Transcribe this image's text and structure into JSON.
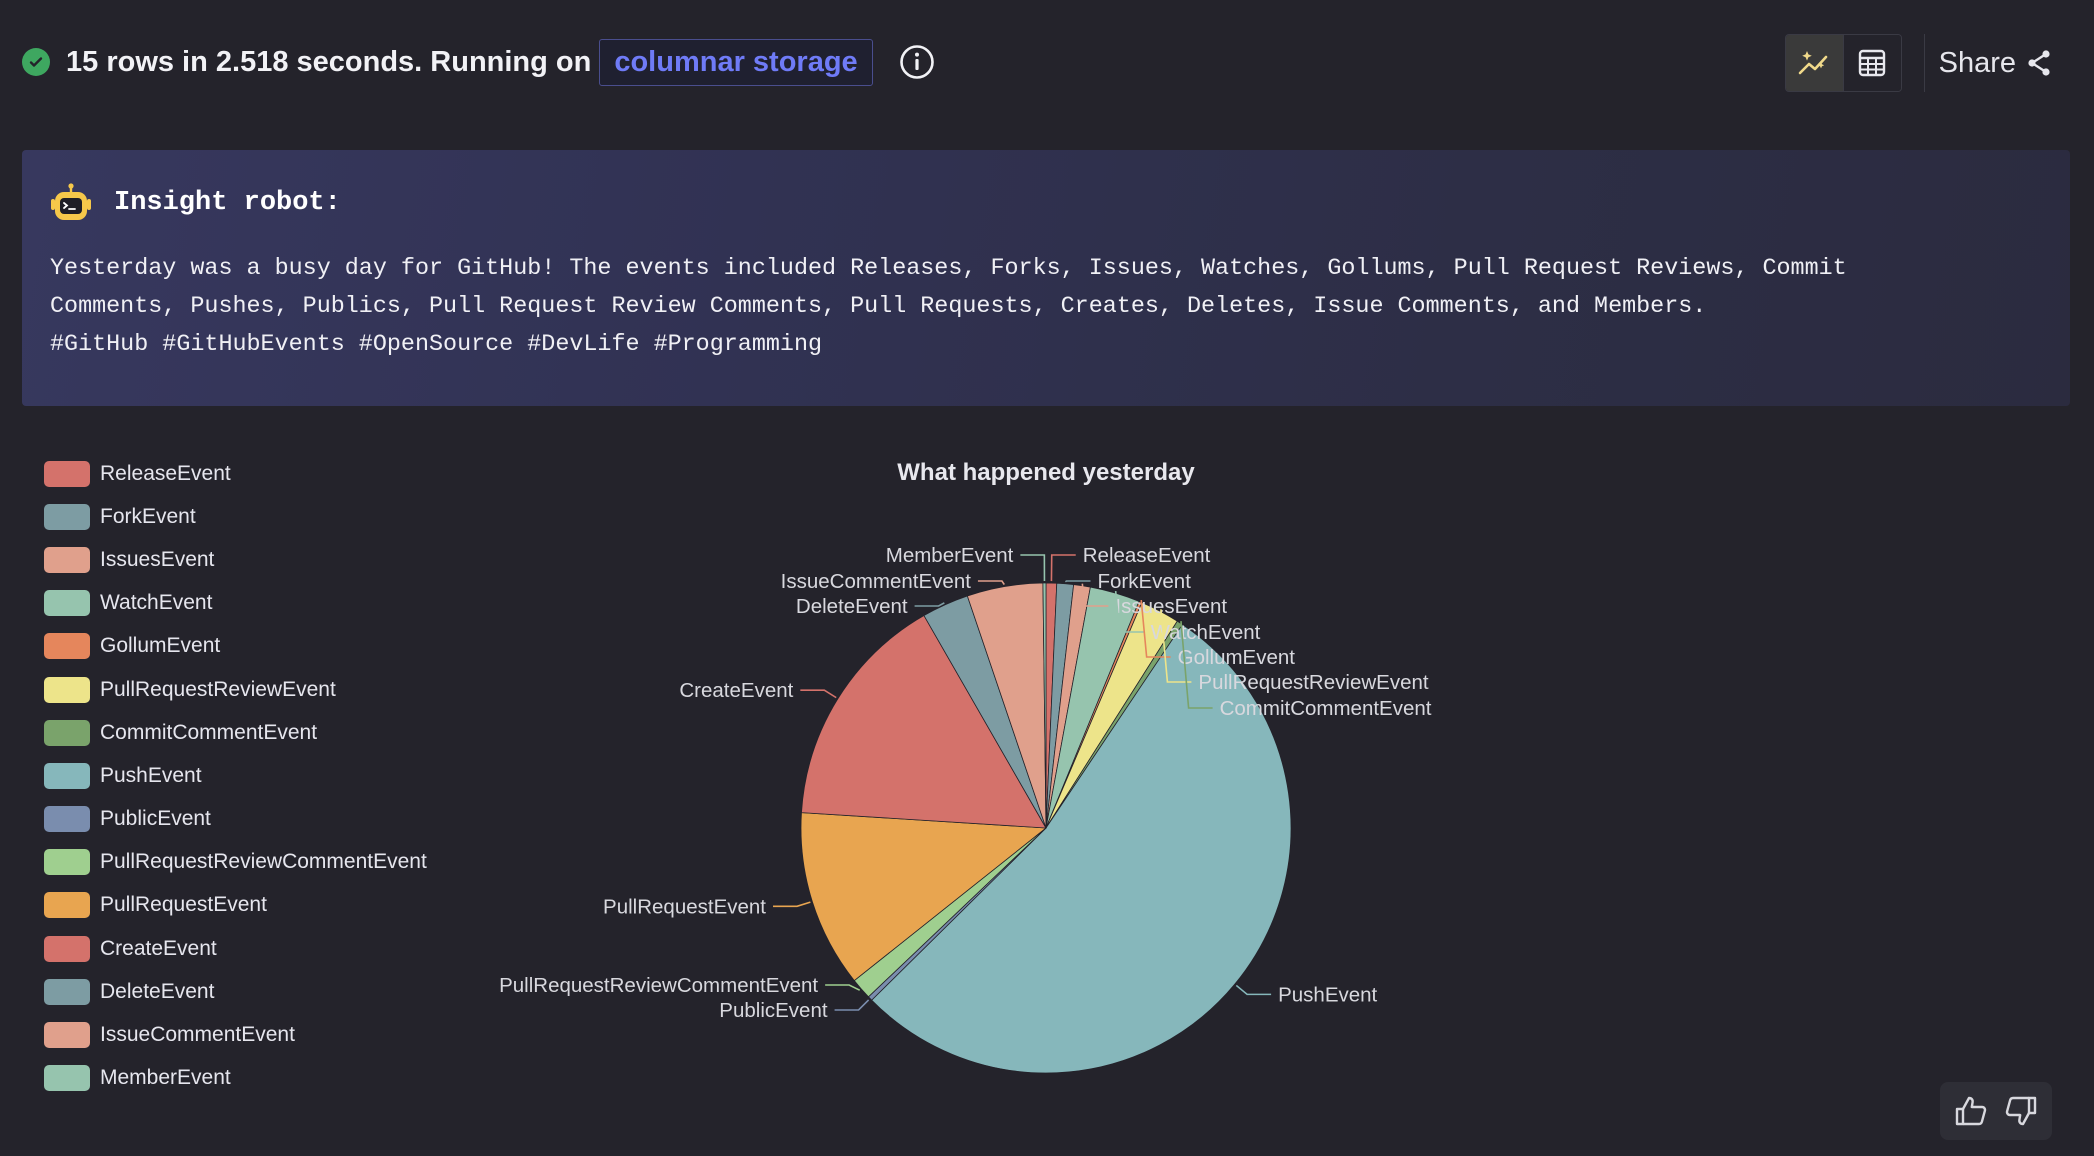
{
  "status": {
    "message": "15 rows in 2.518 seconds. Running on",
    "storage_label": "columnar storage"
  },
  "toolbar": {
    "share_label": "Share"
  },
  "icons": {
    "status": "check-circle-icon",
    "info": "info-icon",
    "chart_view": "chart-sparkle-icon",
    "table_view": "table-icon",
    "share": "share-icon",
    "robot": "robot-icon",
    "like": "thumbs-up-icon",
    "dislike": "thumbs-down-icon"
  },
  "insight": {
    "title": "Insight robot:",
    "lines": [
      "Yesterday was a busy day for GitHub! The events included Releases, Forks, Issues, Watches, Gollums, Pull Request Reviews, Commit",
      "Comments, Pushes, Publics, Pull Request Review Comments, Pull Requests, Creates, Deletes, Issue Comments, and Members.",
      "#GitHub #GitHubEvents #OpenSource #DevLife #Programming"
    ]
  },
  "chart_data": {
    "type": "pie",
    "title": "What happened yesterday",
    "legend_position": "left",
    "slices": [
      {
        "name": "ReleaseEvent",
        "value": 0.7,
        "color": "#d4726b"
      },
      {
        "name": "ForkEvent",
        "value": 1.1,
        "color": "#7d9ca3"
      },
      {
        "name": "IssuesEvent",
        "value": 1.1,
        "color": "#e0a08c"
      },
      {
        "name": "WatchEvent",
        "value": 3.3,
        "color": "#96c4ae"
      },
      {
        "name": "GollumEvent",
        "value": 0.2,
        "color": "#e5865c"
      },
      {
        "name": "PullRequestReviewEvent",
        "value": 2.6,
        "color": "#ede48a"
      },
      {
        "name": "CommitCommentEvent",
        "value": 0.4,
        "color": "#7aa36b"
      },
      {
        "name": "PushEvent",
        "value": 53.2,
        "color": "#86b7bb"
      },
      {
        "name": "PublicEvent",
        "value": 0.3,
        "color": "#7a8dae"
      },
      {
        "name": "PullRequestReviewCommentEvent",
        "value": 1.4,
        "color": "#9fcf8f"
      },
      {
        "name": "PullRequestEvent",
        "value": 11.7,
        "color": "#e8a550"
      },
      {
        "name": "CreateEvent",
        "value": 15.7,
        "color": "#d4726b"
      },
      {
        "name": "DeleteEvent",
        "value": 3.1,
        "color": "#7d9ca3"
      },
      {
        "name": "IssueCommentEvent",
        "value": 5.0,
        "color": "#e0a08c"
      },
      {
        "name": "MemberEvent",
        "value": 0.2,
        "color": "#96c4ae"
      }
    ]
  }
}
